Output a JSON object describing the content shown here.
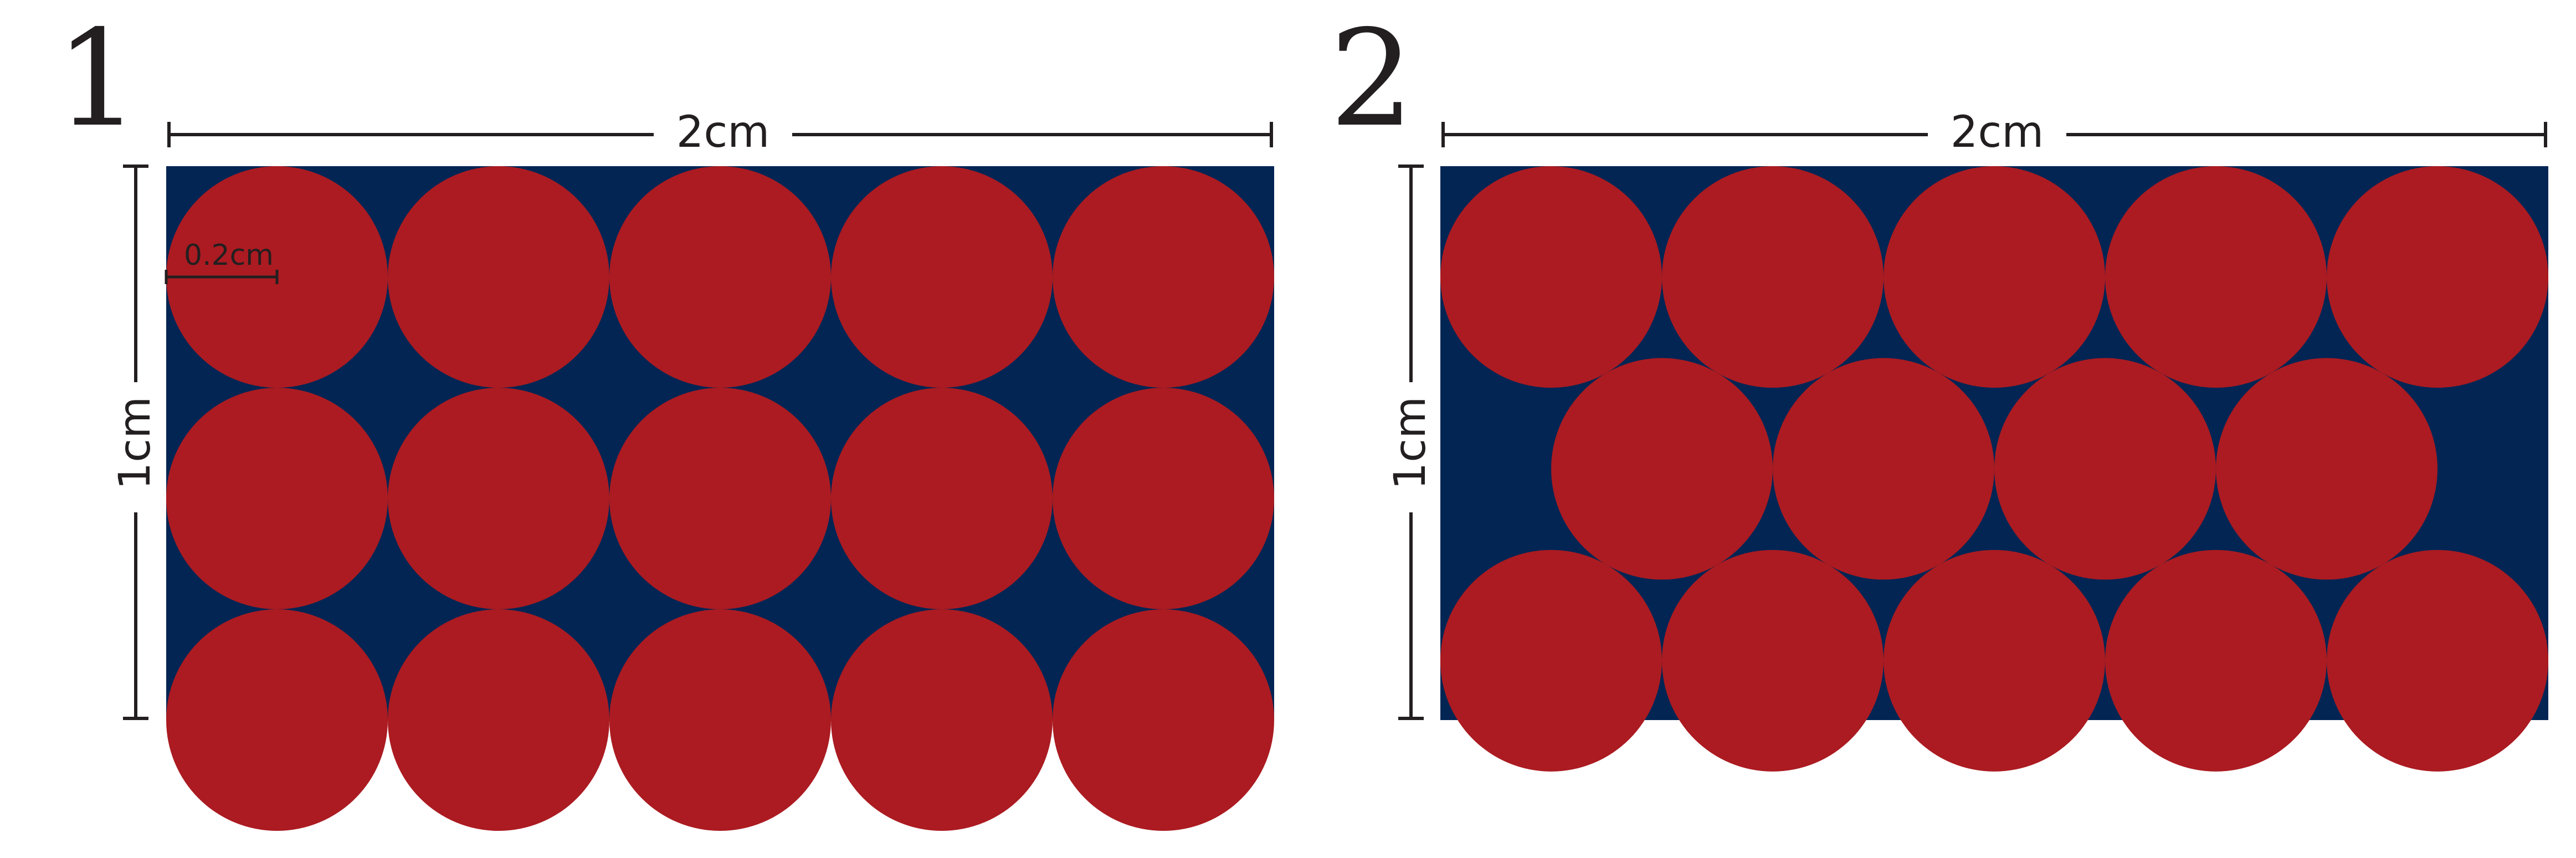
{
  "colors": {
    "background": "#ffffff",
    "rect_fill": "#022554",
    "circle_fill": "#ab1b21",
    "ink": "#231f20"
  },
  "panels": [
    {
      "number": "1",
      "width_label": "2cm",
      "height_label": "1cm",
      "radius_label": "0.2cm",
      "layout": "square grid",
      "rows": 3,
      "circles_per_row": [
        5,
        5,
        5
      ]
    },
    {
      "number": "2",
      "width_label": "2cm",
      "height_label": "1cm",
      "layout": "hexagonal (offset middle row)",
      "rows": 3,
      "circles_per_row": [
        5,
        4,
        5
      ]
    }
  ]
}
